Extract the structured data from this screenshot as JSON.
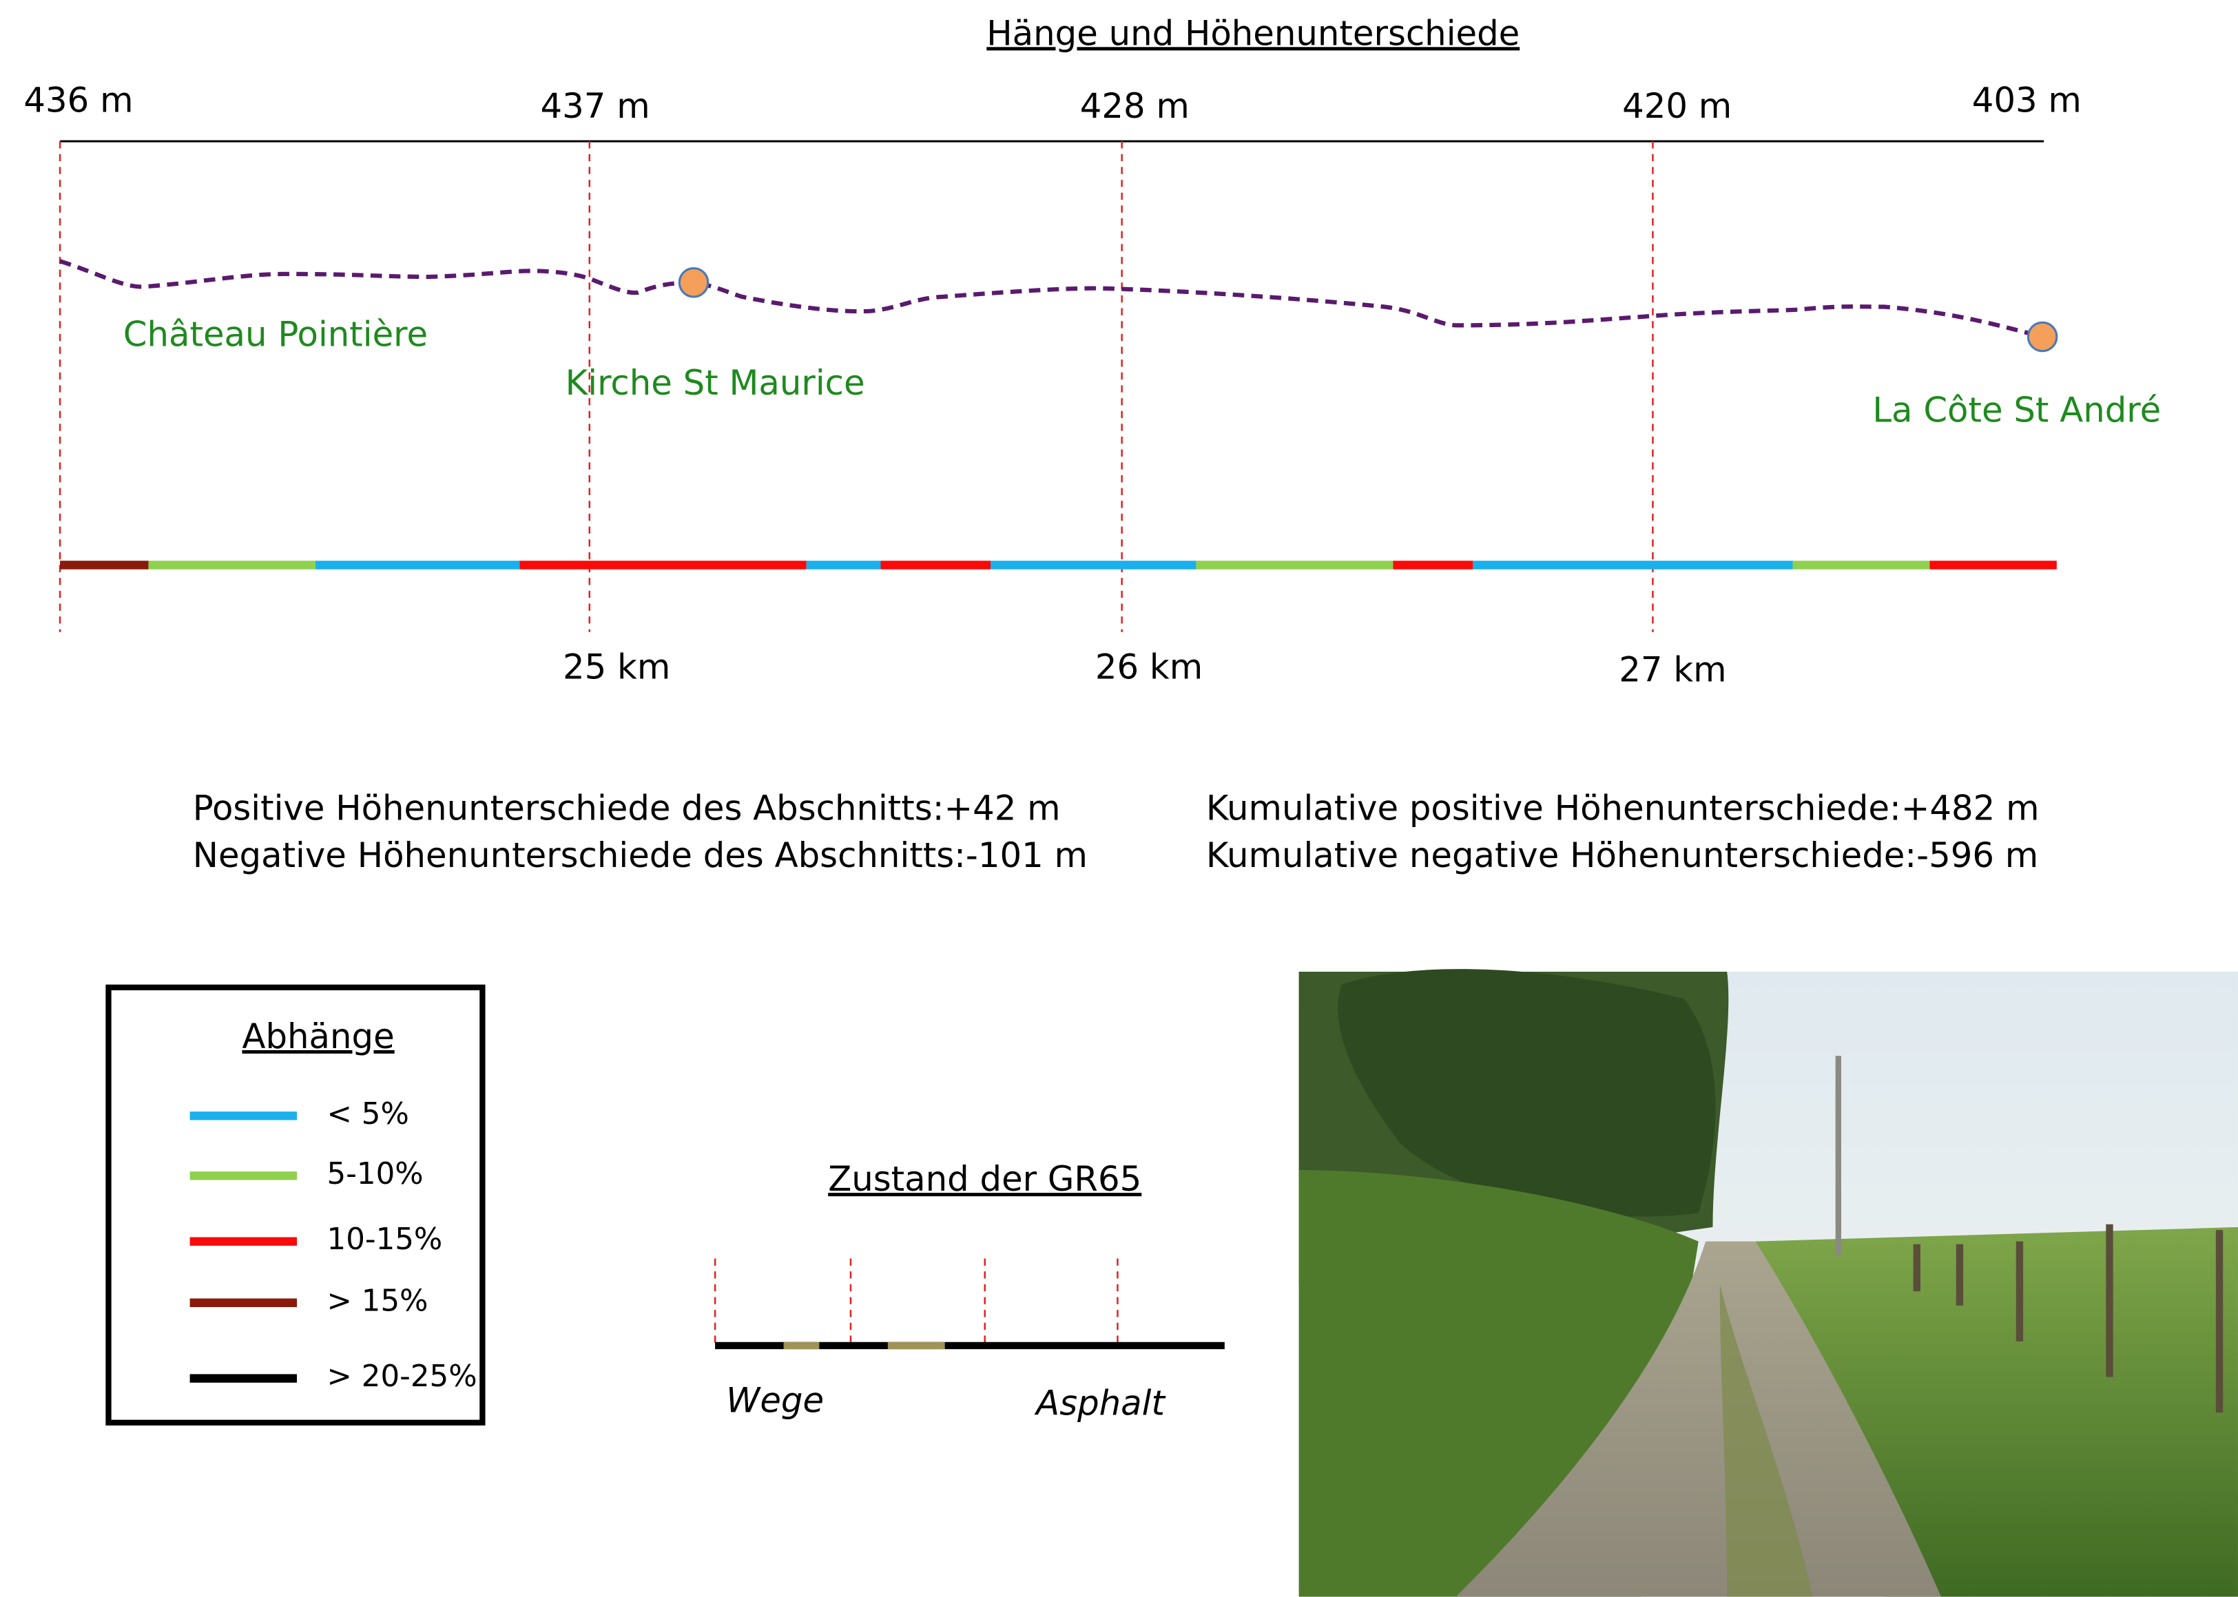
{
  "title": "Hänge und Höhenunterschiede",
  "elevations": [
    "436 m",
    "437 m",
    "428 m",
    "420 m",
    "403 m"
  ],
  "places": [
    "Château Pointière",
    "Kirche St Maurice",
    "La Côte St André"
  ],
  "distances": [
    "25 km",
    "26 km",
    "27 km"
  ],
  "stats": {
    "section": [
      "Positive Höhenunterschiede des Abschnitts:+42 m",
      "Negative Höhenunterschiede des Abschnitts:-101 m"
    ],
    "cumulative": [
      "Kumulative positive Höhenunterschiede:+482 m",
      "Kumulative negative Höhenunterschiede:-596 m"
    ]
  },
  "legend": {
    "title": "Abhänge",
    "items": [
      {
        "label": "< 5%",
        "color": "#1ab0ec"
      },
      {
        "label": "5-10%",
        "color": "#8fd14f"
      },
      {
        "label": "10-15%",
        "color": "#fb0a0a"
      },
      {
        "label": "> 15%",
        "color": "#8b1a0a"
      },
      {
        "label": "> 20-25%",
        "color": "#000000"
      }
    ]
  },
  "surface": {
    "title": "Zustand der GR65",
    "labels": [
      "Wege",
      "Asphalt"
    ]
  }
}
